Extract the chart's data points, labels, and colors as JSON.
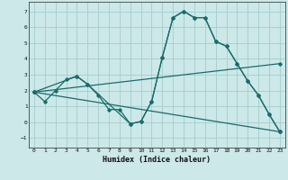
{
  "xlabel": "Humidex (Indice chaleur)",
  "bg_color": "#cce8e8",
  "grid_color": "#aad0d0",
  "line_color": "#1a6b6b",
  "xlim": [
    -0.5,
    23.5
  ],
  "ylim": [
    -1.6,
    7.6
  ],
  "xticks": [
    0,
    1,
    2,
    3,
    4,
    5,
    6,
    7,
    8,
    9,
    10,
    11,
    12,
    13,
    14,
    15,
    16,
    17,
    18,
    19,
    20,
    21,
    22,
    23
  ],
  "yticks": [
    -1,
    0,
    1,
    2,
    3,
    4,
    5,
    6,
    7
  ],
  "series": [
    {
      "x": [
        0,
        1,
        2,
        3,
        4,
        5,
        6,
        7,
        8,
        9,
        10,
        11,
        12,
        13,
        14,
        15,
        16,
        17,
        18,
        19,
        20,
        21,
        22,
        23
      ],
      "y": [
        1.9,
        1.3,
        2.0,
        2.7,
        2.9,
        2.4,
        1.7,
        0.8,
        0.8,
        -0.1,
        0.05,
        1.3,
        4.1,
        6.6,
        7.0,
        6.6,
        6.6,
        5.1,
        4.8,
        3.7,
        2.6,
        1.7,
        0.5,
        -0.6
      ]
    },
    {
      "x": [
        0,
        4,
        5,
        9,
        10,
        11,
        12,
        13,
        14,
        15,
        16,
        17,
        18,
        19,
        20,
        21,
        22,
        23
      ],
      "y": [
        1.9,
        2.9,
        2.4,
        -0.1,
        0.05,
        1.3,
        4.1,
        6.6,
        7.0,
        6.6,
        6.6,
        5.1,
        4.8,
        3.7,
        2.6,
        1.7,
        0.5,
        -0.6
      ]
    },
    {
      "x": [
        0,
        23
      ],
      "y": [
        1.9,
        -0.6
      ]
    },
    {
      "x": [
        0,
        23
      ],
      "y": [
        1.9,
        3.7
      ]
    }
  ]
}
